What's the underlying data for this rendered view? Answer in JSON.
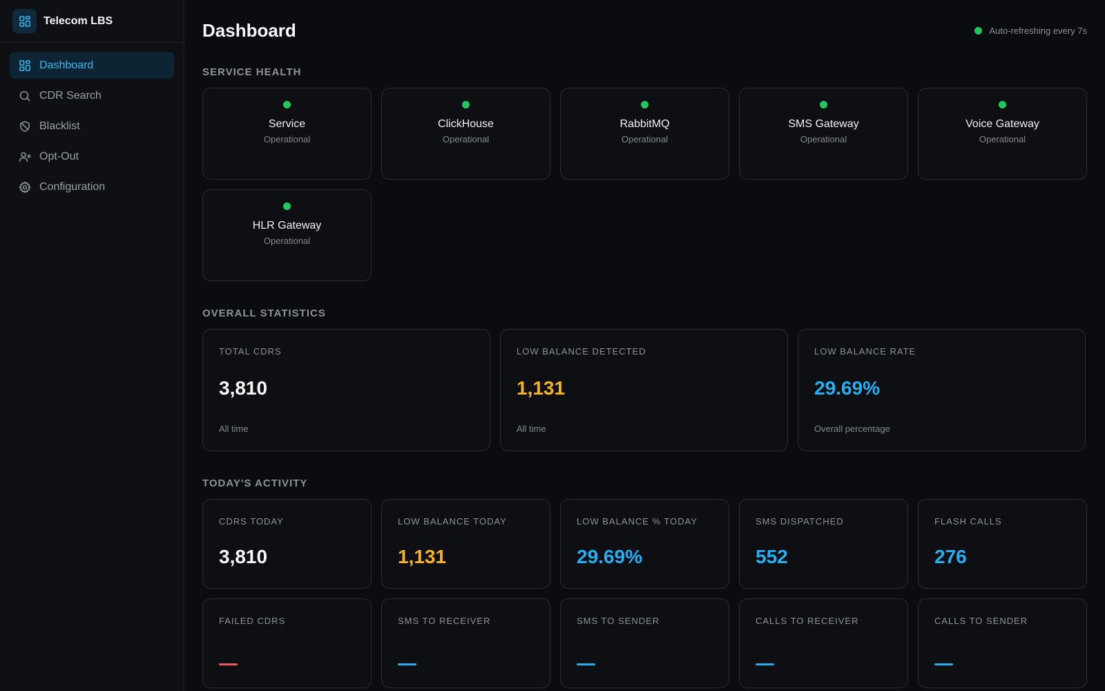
{
  "sidebar": {
    "brand": "Telecom LBS",
    "items": [
      {
        "label": "Dashboard"
      },
      {
        "label": "CDR Search"
      },
      {
        "label": "Blacklist"
      },
      {
        "label": "Opt-Out"
      },
      {
        "label": "Configuration"
      }
    ]
  },
  "header": {
    "title": "Dashboard",
    "refresh": "Auto-refreshing every 7s"
  },
  "service_health": {
    "title": "SERVICE HEALTH",
    "services": [
      {
        "name": "Service",
        "status": "Operational"
      },
      {
        "name": "ClickHouse",
        "status": "Operational"
      },
      {
        "name": "RabbitMQ",
        "status": "Operational"
      },
      {
        "name": "SMS Gateway",
        "status": "Operational"
      },
      {
        "name": "Voice Gateway",
        "status": "Operational"
      },
      {
        "name": "HLR Gateway",
        "status": "Operational"
      }
    ]
  },
  "overall": {
    "title": "OVERALL STATISTICS",
    "cards": [
      {
        "label": "TOTAL CDRS",
        "value": "3,810",
        "sub": "All time"
      },
      {
        "label": "LOW BALANCE DETECTED",
        "value": "1,131",
        "sub": "All time"
      },
      {
        "label": "LOW BALANCE RATE",
        "value": "29.69%",
        "sub": "Overall percentage"
      }
    ]
  },
  "today": {
    "title": "TODAY'S ACTIVITY",
    "cards": [
      {
        "label": "CDRS TODAY",
        "value": "3,810"
      },
      {
        "label": "LOW BALANCE TODAY",
        "value": "1,131"
      },
      {
        "label": "LOW BALANCE % TODAY",
        "value": "29.69%"
      },
      {
        "label": "SMS DISPATCHED",
        "value": "552"
      },
      {
        "label": "FLASH CALLS",
        "value": "276"
      },
      {
        "label": "FAILED CDRS"
      },
      {
        "label": "SMS TO RECEIVER"
      },
      {
        "label": "SMS TO SENDER"
      },
      {
        "label": "CALLS TO RECEIVER"
      },
      {
        "label": "CALLS TO SENDER"
      }
    ]
  },
  "colors": {
    "accent": "#25aef0",
    "warning": "#f5b324",
    "success": "#22c55e",
    "error": "#f05a5a"
  }
}
